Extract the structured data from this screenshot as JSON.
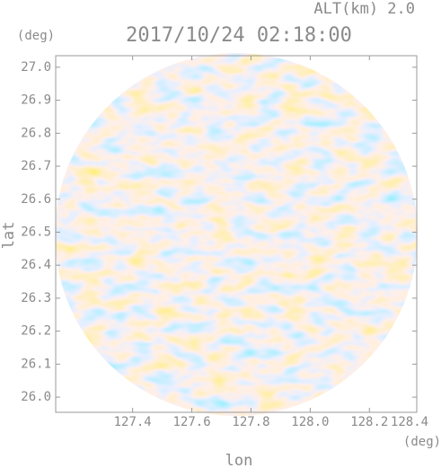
{
  "chart_data": {
    "type": "radar-ppi",
    "title": "2017/10/24 02:18:00",
    "subtitle": "ALT(km) 2.0",
    "y_unit": "(deg)",
    "x_unit": "(deg)",
    "xlabel": "lon",
    "ylabel": "lat",
    "xlim": [
      127.14,
      128.36
    ],
    "ylim": [
      25.954,
      27.035
    ],
    "xticks": [
      {
        "value": 127.4,
        "label": "127.4"
      },
      {
        "value": 127.6,
        "label": "127.6"
      },
      {
        "value": 127.8,
        "label": "127.8"
      },
      {
        "value": 128.0,
        "label": "128.0"
      },
      {
        "value": 128.2,
        "label": "128.2"
      },
      {
        "value": 128.4,
        "label": "128.4"
      }
    ],
    "yticks": [
      {
        "value": 26.0,
        "label": "26.0"
      },
      {
        "value": 26.1,
        "label": "26.1"
      },
      {
        "value": 26.2,
        "label": "26.2"
      },
      {
        "value": 26.3,
        "label": "26.3"
      },
      {
        "value": 26.4,
        "label": "26.4"
      },
      {
        "value": 26.5,
        "label": "26.5"
      },
      {
        "value": 26.6,
        "label": "26.6"
      },
      {
        "value": 26.7,
        "label": "26.7"
      },
      {
        "value": 26.8,
        "label": "26.8"
      },
      {
        "value": 26.9,
        "label": "26.9"
      },
      {
        "value": 27.0,
        "label": "27.0"
      }
    ]
  }
}
